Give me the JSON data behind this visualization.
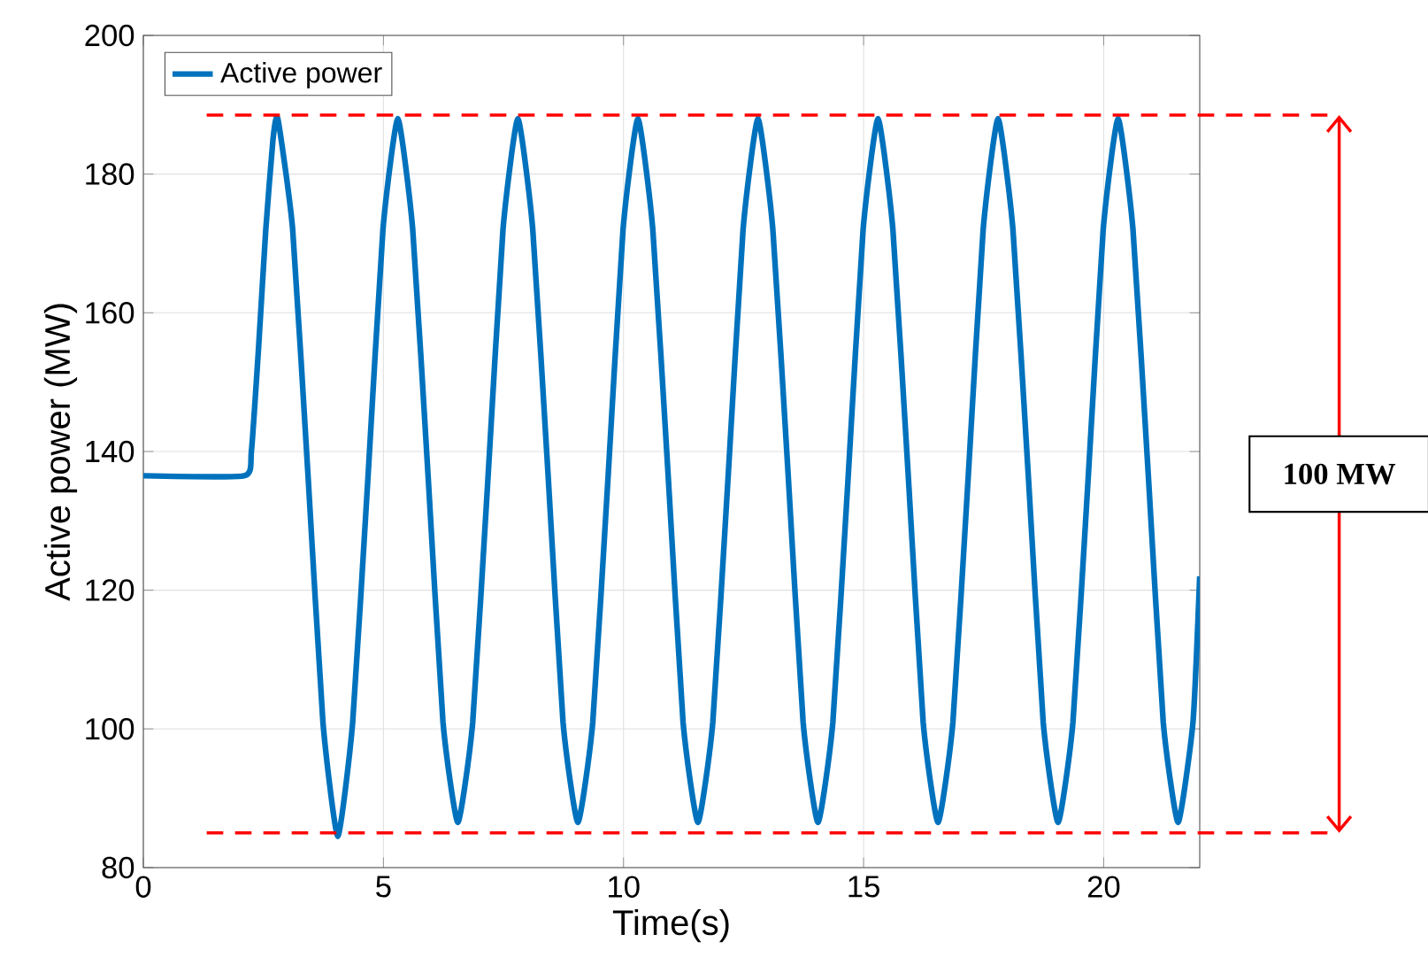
{
  "chart_data": {
    "type": "line",
    "xlabel": "Time(s)",
    "ylabel": "Active power (MW)",
    "xlim": [
      0,
      22
    ],
    "ylim": [
      80,
      200
    ],
    "xticks": [
      0,
      5,
      10,
      15,
      20
    ],
    "yticks": [
      80,
      100,
      120,
      140,
      160,
      180,
      200
    ],
    "grid": true,
    "legend": "top left",
    "line_style": "solid",
    "marker": "none",
    "x": [
      0,
      2.1,
      2.25,
      2.4,
      2.55,
      2.7,
      2.8,
      3.11,
      3.43,
      3.74,
      4.05,
      4.36,
      4.68,
      4.99,
      5.3,
      5.61,
      5.93,
      6.24,
      6.55,
      6.86,
      7.18,
      7.49,
      7.8,
      8.11,
      8.43,
      8.74,
      9.05,
      9.36,
      9.68,
      9.99,
      10.3,
      10.61,
      10.93,
      11.24,
      11.55,
      11.86,
      12.18,
      12.49,
      12.8,
      13.11,
      13.43,
      13.74,
      14.05,
      14.36,
      14.68,
      14.99,
      15.3,
      15.61,
      15.93,
      16.24,
      16.55,
      16.86,
      17.18,
      17.49,
      17.8,
      18.11,
      18.43,
      18.74,
      19.05,
      19.36,
      19.68,
      19.99,
      20.3,
      20.61,
      20.93,
      21.24,
      21.55,
      21.86,
      22
    ],
    "series": [
      {
        "name": "Active power",
        "color": "#0072bd",
        "values": [
          136.5,
          136.5,
          140,
          155,
          172,
          185,
          188,
          172,
          136.5,
          101,
          84.5,
          101,
          136.5,
          172,
          188,
          172,
          136.5,
          101,
          86.5,
          101,
          136.5,
          172,
          188,
          172,
          136.5,
          101,
          86.5,
          101,
          136.5,
          172,
          188,
          172,
          136.5,
          101,
          86.5,
          101,
          136.5,
          172,
          188,
          172,
          136.5,
          101,
          86.5,
          101,
          136.5,
          172,
          188,
          172,
          136.5,
          101,
          86.5,
          101,
          136.5,
          172,
          188,
          172,
          136.5,
          101,
          86.5,
          101,
          136.5,
          172,
          188,
          172,
          136.5,
          101,
          86.5,
          101,
          122
        ]
      }
    ],
    "ref_lines": [
      {
        "axis": "y",
        "value": 188.5,
        "color": "#ff0000",
        "line_style": "dashed"
      },
      {
        "axis": "y",
        "value": 85,
        "color": "#ff0000",
        "line_style": "dashed"
      }
    ],
    "annotations": [
      "100 MW"
    ]
  }
}
